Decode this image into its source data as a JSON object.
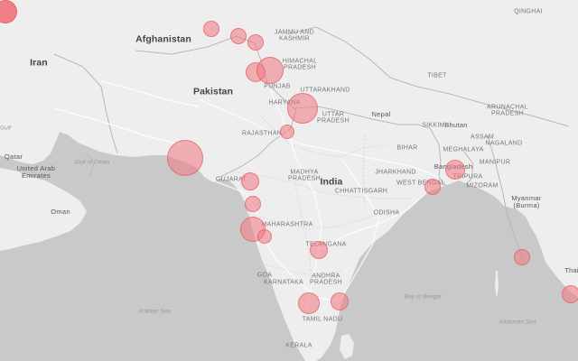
{
  "map": {
    "colors": {
      "land": "#eeeeee",
      "water": "#c9c9c9",
      "bubble": "#f07880",
      "border": "#b8b8b8",
      "road": "#ffffff"
    },
    "labels": [
      {
        "id": "afghanistan",
        "text": "Afghanistan",
        "kind": "country"
      },
      {
        "id": "iran",
        "text": "Iran",
        "kind": "country"
      },
      {
        "id": "pakistan",
        "text": "Pakistan",
        "kind": "country"
      },
      {
        "id": "india",
        "text": "India",
        "kind": "country"
      },
      {
        "id": "nepal",
        "text": "Nepal",
        "kind": "country-small"
      },
      {
        "id": "bhutan",
        "text": "Bhutan",
        "kind": "country-small"
      },
      {
        "id": "bangladesh",
        "text": "Bangladesh",
        "kind": "country-small"
      },
      {
        "id": "myanmar",
        "text": "Myanmar\n(Burma)",
        "kind": "country-small"
      },
      {
        "id": "qatar",
        "text": "Qatar",
        "kind": "country-small"
      },
      {
        "id": "uae",
        "text": "United Arab\nEmirates",
        "kind": "country-small"
      },
      {
        "id": "oman",
        "text": "Oman",
        "kind": "country-small"
      },
      {
        "id": "tha",
        "text": "Thai",
        "kind": "country-small"
      },
      {
        "id": "jammu",
        "text": "JAMMU AND\nKASHMIR",
        "kind": "state"
      },
      {
        "id": "himachal",
        "text": "HIMACHAL\nPRADESH",
        "kind": "state"
      },
      {
        "id": "punjab",
        "text": "PUNJAB",
        "kind": "state"
      },
      {
        "id": "uttarakhand",
        "text": "UTTARAKHAND",
        "kind": "state"
      },
      {
        "id": "haryana",
        "text": "HARYANA",
        "kind": "state"
      },
      {
        "id": "uttarpradesh",
        "text": "UTTAR\nPRADESH",
        "kind": "state"
      },
      {
        "id": "rajasthan",
        "text": "RAJASTHAN",
        "kind": "state"
      },
      {
        "id": "gujarat",
        "text": "GUJARAT",
        "kind": "state"
      },
      {
        "id": "madhyapradesh",
        "text": "MADHYA\nPRADESH",
        "kind": "state"
      },
      {
        "id": "chhattisgarh",
        "text": "CHHATTISGARH",
        "kind": "state"
      },
      {
        "id": "jharkhand",
        "text": "JHARKHAND",
        "kind": "state"
      },
      {
        "id": "bihar",
        "text": "BIHAR",
        "kind": "state"
      },
      {
        "id": "westbengal",
        "text": "WEST BENGAL",
        "kind": "state"
      },
      {
        "id": "odisha",
        "text": "ODISHA",
        "kind": "state"
      },
      {
        "id": "maharashtra",
        "text": "MAHARASHTRA",
        "kind": "state"
      },
      {
        "id": "telangana",
        "text": "TELANGANA",
        "kind": "state"
      },
      {
        "id": "andhra",
        "text": "ANDHRA\nPRADESH",
        "kind": "state"
      },
      {
        "id": "goa",
        "text": "GOA",
        "kind": "state"
      },
      {
        "id": "karnataka",
        "text": "KARNATAKA",
        "kind": "state"
      },
      {
        "id": "tamilnadu",
        "text": "TAMIL NADU",
        "kind": "state"
      },
      {
        "id": "kerala",
        "text": "KERALA",
        "kind": "state"
      },
      {
        "id": "sikkim",
        "text": "SIKKIM",
        "kind": "state"
      },
      {
        "id": "assam",
        "text": "ASSAM",
        "kind": "state"
      },
      {
        "id": "arunachal",
        "text": "ARUNACHAL\nPRADESH",
        "kind": "state"
      },
      {
        "id": "nagaland",
        "text": "NAGALAND",
        "kind": "state"
      },
      {
        "id": "meghalaya",
        "text": "MEGHALAYA",
        "kind": "state"
      },
      {
        "id": "manipur",
        "text": "MANIPUR",
        "kind": "state"
      },
      {
        "id": "tripura",
        "text": "TRIPURA",
        "kind": "state"
      },
      {
        "id": "mizoram",
        "text": "MIZORAM",
        "kind": "state"
      },
      {
        "id": "tibet",
        "text": "TIBET",
        "kind": "state"
      },
      {
        "id": "qinghai",
        "text": "QINGHAI",
        "kind": "state"
      },
      {
        "id": "gulfoman",
        "text": "Gulf of Oman",
        "kind": "water"
      },
      {
        "id": "arabiansea",
        "text": "Arabian Sea",
        "kind": "water"
      },
      {
        "id": "bayofbengal",
        "text": "Bay of Bengal",
        "kind": "water"
      },
      {
        "id": "andamansea",
        "text": "Andaman Sea",
        "kind": "water"
      },
      {
        "id": "gulf",
        "text": "Gulf",
        "kind": "water"
      }
    ],
    "bubbles": [
      {
        "id": "b1"
      },
      {
        "id": "b2"
      },
      {
        "id": "b3"
      },
      {
        "id": "b4"
      },
      {
        "id": "b5"
      },
      {
        "id": "b6"
      },
      {
        "id": "b7"
      },
      {
        "id": "b8"
      },
      {
        "id": "b9"
      },
      {
        "id": "b10"
      },
      {
        "id": "b11"
      },
      {
        "id": "b12"
      },
      {
        "id": "b13"
      },
      {
        "id": "b14"
      },
      {
        "id": "b15"
      },
      {
        "id": "b16"
      },
      {
        "id": "b17"
      },
      {
        "id": "b18"
      },
      {
        "id": "b19"
      },
      {
        "id": "b20"
      },
      {
        "id": "b21"
      },
      {
        "id": "b22"
      },
      {
        "id": "b23"
      }
    ]
  }
}
